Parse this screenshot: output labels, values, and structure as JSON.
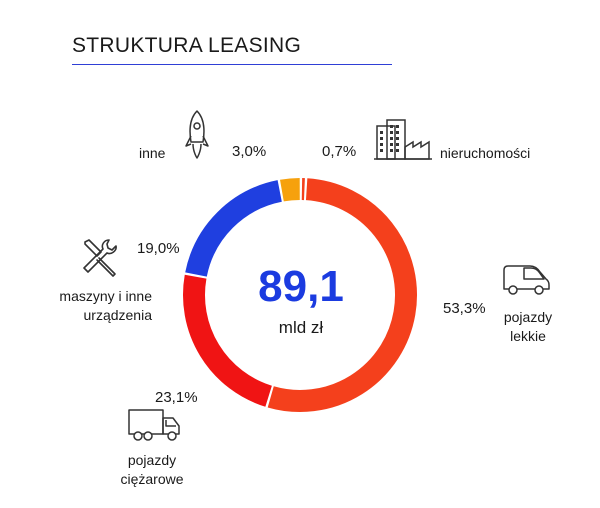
{
  "header": {
    "title": "STRUKTURA LEASING"
  },
  "center": {
    "value": "89,1",
    "unit": "mld zł"
  },
  "chart_data": {
    "type": "pie",
    "title": "STRUKTURA LEASING",
    "total": 89.1,
    "total_unit": "mld zł",
    "categories": [
      "pojazdy lekkie",
      "pojazdy ciężarowe",
      "maszyny i inne urządzenia",
      "inne",
      "nieruchomości"
    ],
    "values": [
      53.3,
      23.1,
      19.0,
      3.0,
      0.7
    ],
    "value_labels": [
      "53,3%",
      "23,1%",
      "19,0%",
      "3,0%",
      "0,7%"
    ],
    "colors": [
      "#f4401c",
      "#f01414",
      "#1f3fe0",
      "#f6a10d",
      "#f4401c"
    ],
    "label_lines": {
      "lekkie": [
        "pojazdy",
        "lekkie"
      ],
      "ciezarowe": [
        "pojazdy",
        "ciężarowe"
      ],
      "maszyny": [
        "maszyny i inne",
        "urządzenia"
      ],
      "inne": [
        "inne"
      ],
      "nieruchomosci": [
        "nieruchomości"
      ]
    },
    "icons": [
      "van-icon",
      "truck-icon",
      "tools-icon",
      "rocket-icon",
      "building-icon"
    ]
  }
}
